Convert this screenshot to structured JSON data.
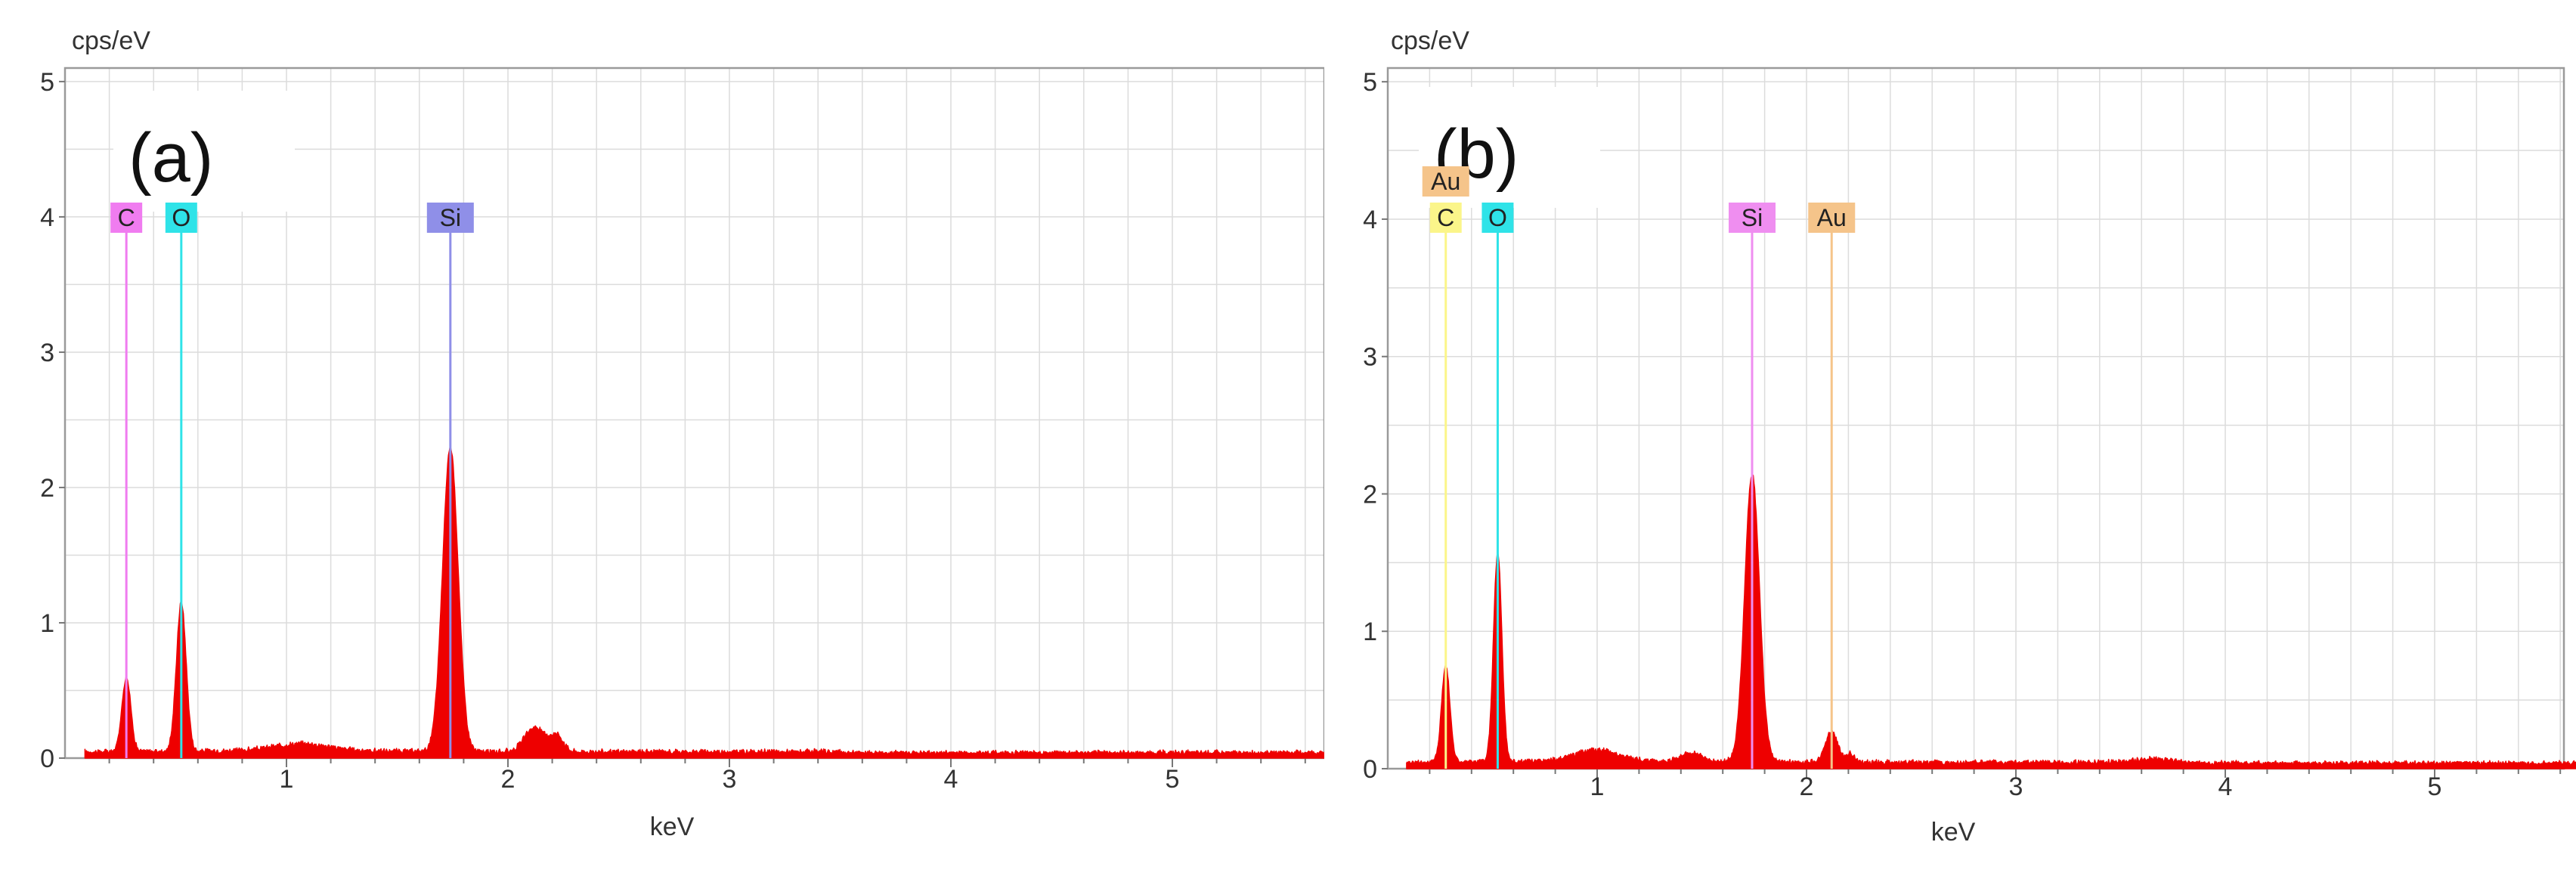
{
  "chart_data": [
    {
      "type": "line",
      "title": "(a)",
      "ylabel": "cps/eV",
      "xlabel": "keV",
      "xlim": [
        0.0,
        5.8
      ],
      "ylim": [
        0,
        5.1
      ],
      "xticks": [
        1,
        2,
        3,
        4,
        5
      ],
      "yticks": [
        0,
        1,
        2,
        3,
        4,
        5
      ],
      "grid": true,
      "series_color": "#ee0000",
      "baseline": 0.04,
      "peaks": [
        {
          "center": 0.277,
          "height": 0.55,
          "width": 0.02
        },
        {
          "center": 0.525,
          "height": 1.1,
          "width": 0.022
        },
        {
          "center": 1.07,
          "height": 0.05,
          "width": 0.12
        },
        {
          "center": 1.74,
          "height": 2.25,
          "width": 0.035
        },
        {
          "center": 2.12,
          "height": 0.18,
          "width": 0.045
        },
        {
          "center": 2.22,
          "height": 0.12,
          "width": 0.03
        }
      ],
      "markers": [
        {
          "label": "C",
          "energy": 0.277,
          "color": "#f07cf0",
          "row": 0
        },
        {
          "label": "O",
          "energy": 0.525,
          "color": "#2fe3e8",
          "row": 0
        },
        {
          "label": "Si",
          "energy": 1.74,
          "color": "#8f8fe8",
          "row": 0
        }
      ]
    },
    {
      "type": "line",
      "title": "(b)",
      "ylabel": "cps/eV",
      "xlabel": "keV",
      "xlim": [
        0.0,
        5.8
      ],
      "ylim": [
        0,
        5.1
      ],
      "xticks": [
        1,
        2,
        3,
        4,
        5
      ],
      "yticks": [
        0,
        1,
        2,
        3,
        4,
        5
      ],
      "grid": true,
      "series_color": "#ee0000",
      "baseline": 0.04,
      "peaks": [
        {
          "center": 0.277,
          "height": 0.7,
          "width": 0.02
        },
        {
          "center": 0.525,
          "height": 1.52,
          "width": 0.02
        },
        {
          "center": 1.0,
          "height": 0.08,
          "width": 0.1
        },
        {
          "center": 1.45,
          "height": 0.06,
          "width": 0.05
        },
        {
          "center": 1.74,
          "height": 2.1,
          "width": 0.035
        },
        {
          "center": 2.12,
          "height": 0.22,
          "width": 0.03
        },
        {
          "center": 2.21,
          "height": 0.06,
          "width": 0.02
        },
        {
          "center": 3.65,
          "height": 0.03,
          "width": 0.1
        }
      ],
      "markers": [
        {
          "label": "Au",
          "energy": 0.277,
          "color": "#f5c48a",
          "row": 1
        },
        {
          "label": "C",
          "energy": 0.277,
          "color": "#fbf58a",
          "row": 0
        },
        {
          "label": "O",
          "energy": 0.525,
          "color": "#2fe3e8",
          "row": 0
        },
        {
          "label": "Si",
          "energy": 1.74,
          "color": "#ef8ef0",
          "row": 0
        },
        {
          "label": "Au",
          "energy": 2.12,
          "color": "#f5c48a",
          "row": 0
        }
      ]
    }
  ]
}
